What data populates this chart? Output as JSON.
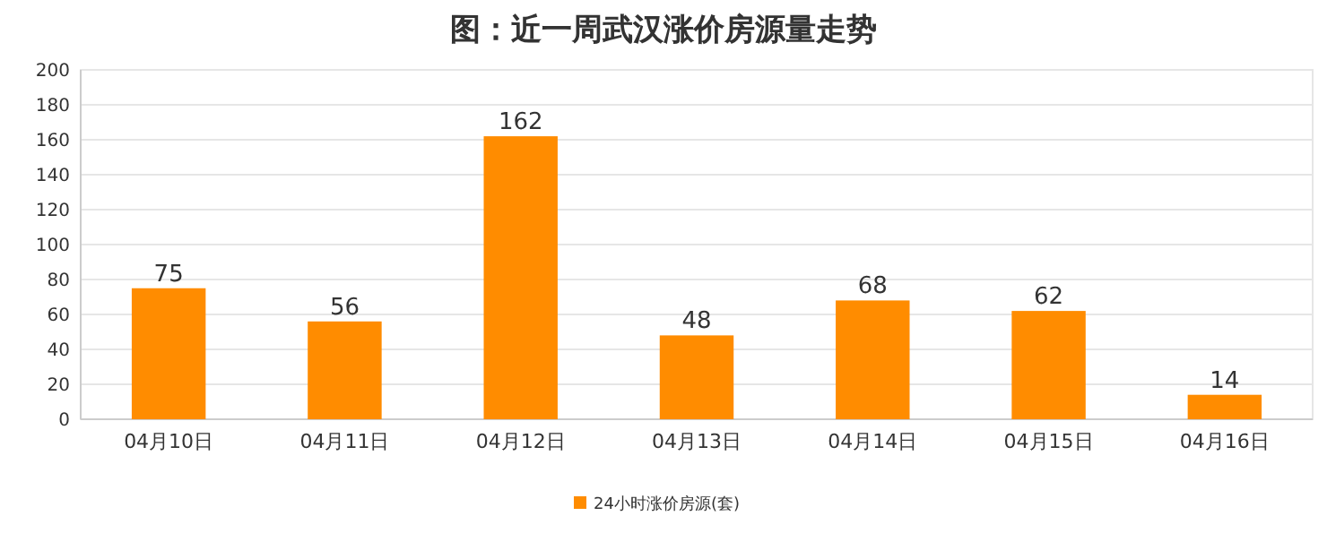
{
  "chart_data": {
    "type": "bar",
    "title": "图：近一周武汉涨价房源量走势",
    "categories": [
      "04月10日",
      "04月11日",
      "04月12日",
      "04月13日",
      "04月14日",
      "04月15日",
      "04月16日"
    ],
    "series": [
      {
        "name": "24小时涨价房源(套)",
        "color": "#ff8c00",
        "values": [
          75,
          56,
          162,
          48,
          68,
          62,
          14
        ]
      }
    ],
    "ylim": [
      0,
      200
    ],
    "yticks": [
      0,
      20,
      40,
      60,
      80,
      100,
      120,
      140,
      160,
      180,
      200
    ],
    "grid": "y",
    "legend": "bottom",
    "data_labels": true
  }
}
